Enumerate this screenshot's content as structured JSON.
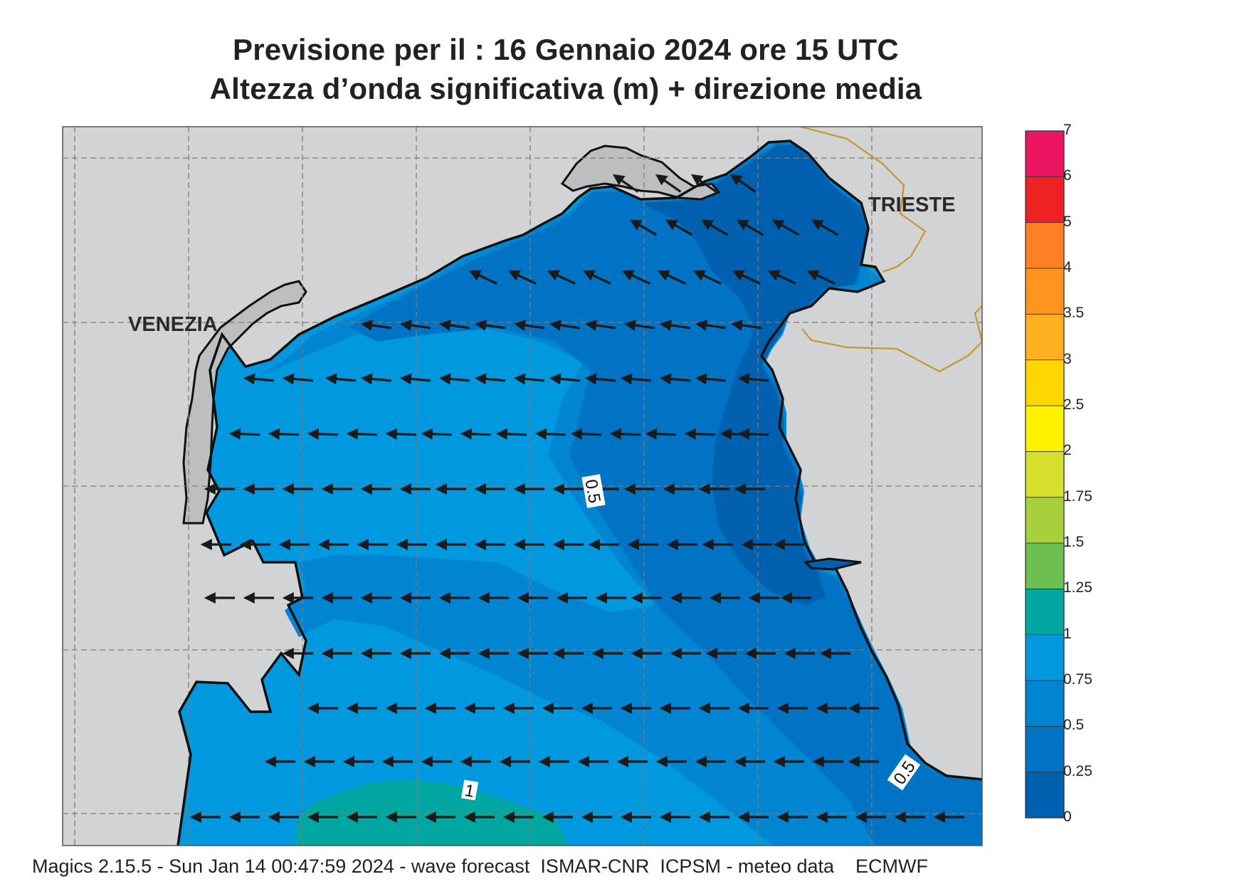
{
  "title": {
    "line1": "Previsione per il  :  16  Gennaio  2024   ore 15 UTC",
    "line2": "Altezza d’onda significativa (m) + direzione media"
  },
  "cities": {
    "venezia": "VENEZIA",
    "trieste": "TRIESTE"
  },
  "contour_labels": {
    "a": "0.5",
    "b": "1",
    "c": "0.5"
  },
  "colorbar": {
    "levels": [
      "0",
      "0.25",
      "0.5",
      "0.75",
      "1",
      "1.25",
      "1.5",
      "1.75",
      "2",
      "2.5",
      "3",
      "3.5",
      "4",
      "5",
      "6",
      "7"
    ],
    "colors": [
      "#0060b0",
      "#0073c4",
      "#0085d3",
      "#0099e0",
      "#00a6a0",
      "#6cc051",
      "#a8cf3c",
      "#d6e02c",
      "#fff300",
      "#ffd700",
      "#ffb020",
      "#ff9420",
      "#ff7f24",
      "#ee2223",
      "#ec1561"
    ]
  },
  "map_colors": {
    "land": "#d2d3d5",
    "lagoon_land": "#bdbec0",
    "sea_0_25": "#0060b0",
    "sea_25_50": "#0073c4",
    "sea_50_75": "#0085d3",
    "sea_75_100": "#0099e0",
    "sea_100_125": "#00a6a0",
    "border": "#c8962c"
  },
  "footer": "Magics 2.15.5 - Sun Jan 14 00:47:59 2024 - wave forecast  ISMAR-CNR  ICPSM - meteo data    ECMWF"
}
